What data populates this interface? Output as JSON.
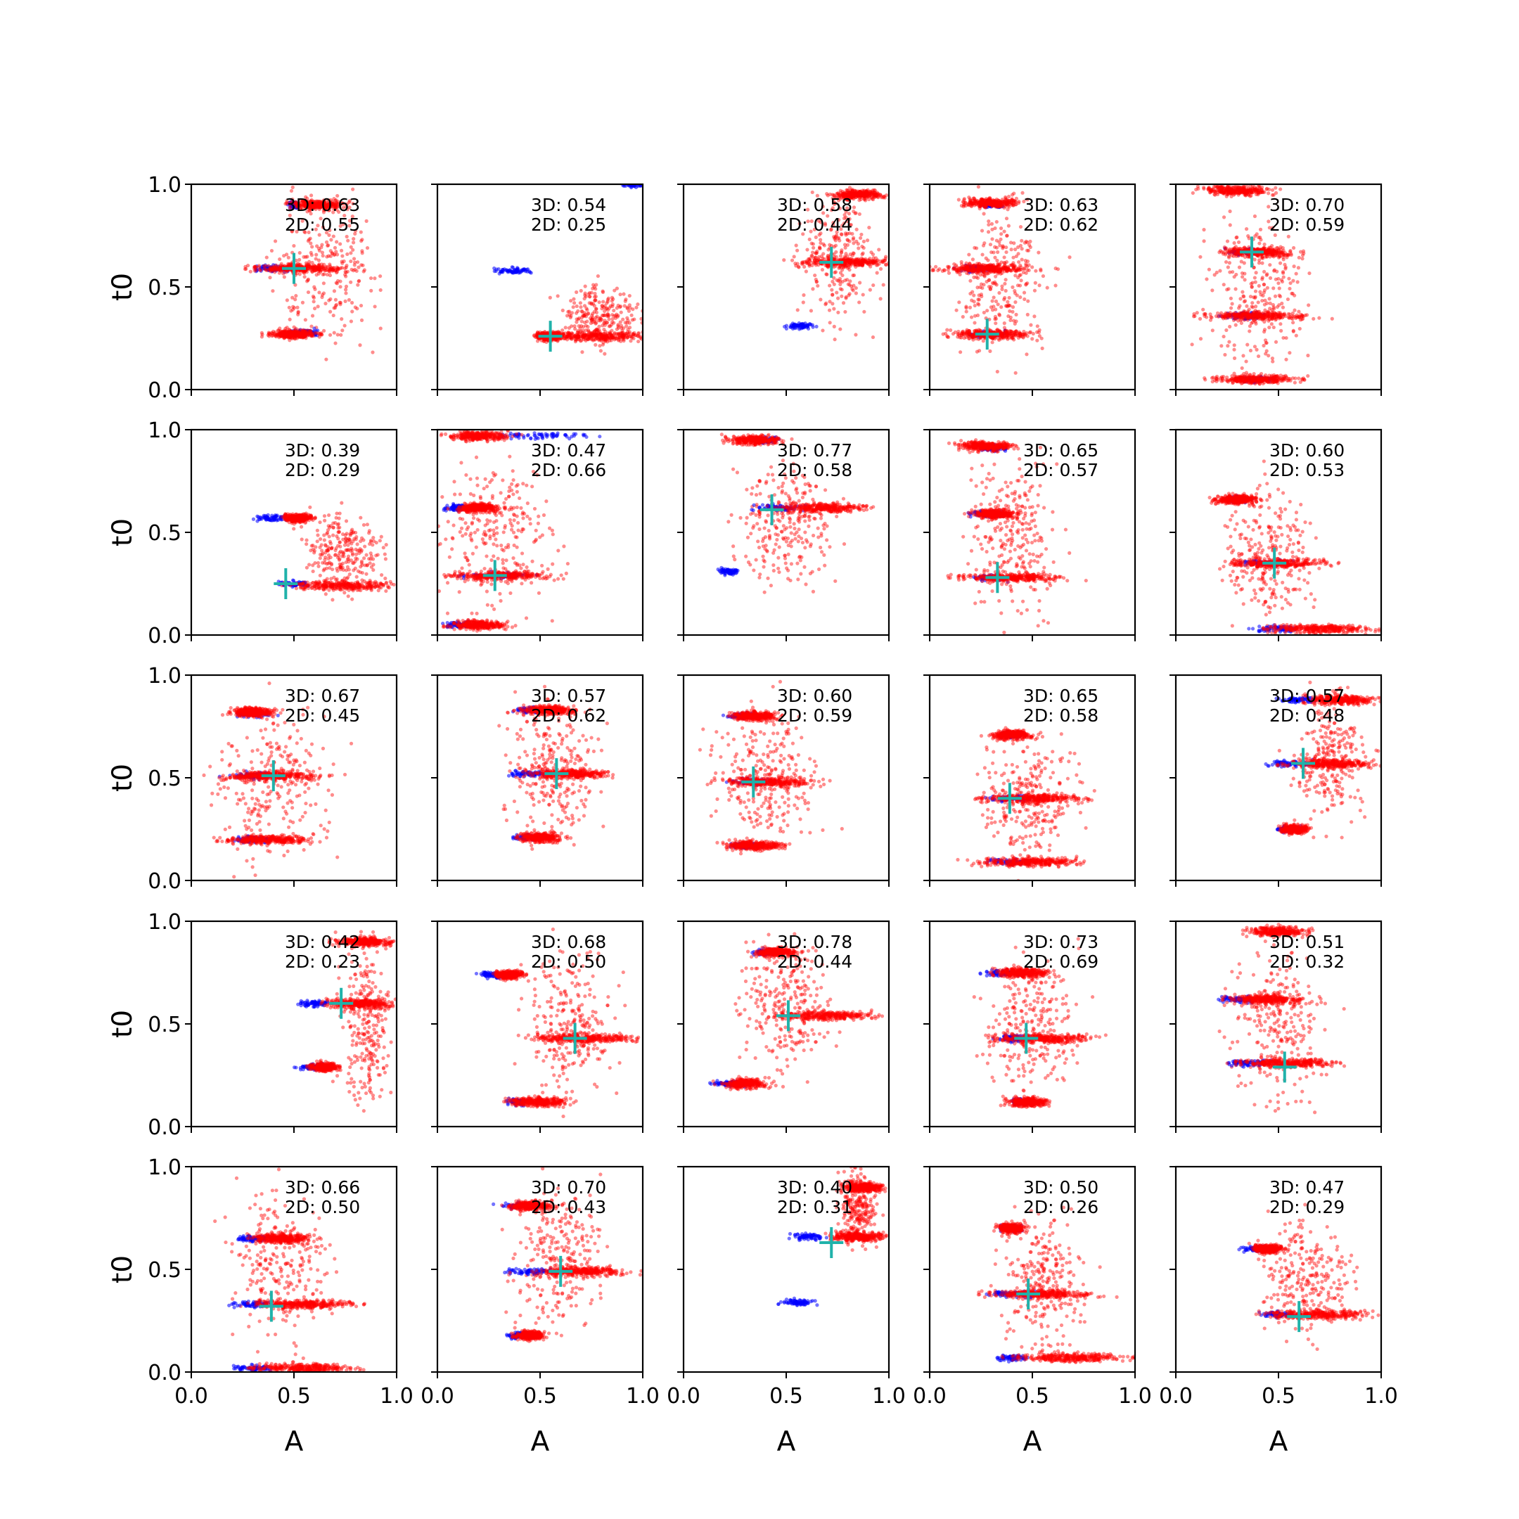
{
  "figure": {
    "xlabel": "A",
    "ylabel": "t0",
    "xticks": [
      "0.0",
      "0.5",
      "1.0"
    ],
    "yticks": [
      "0.0",
      "0.5",
      "1.0"
    ]
  },
  "chart_data": {
    "type": "scatter",
    "layout": "5x5 grid of scatter subplots",
    "xlim": [
      0,
      1
    ],
    "ylim": [
      0,
      1
    ],
    "grid": false,
    "series_colors": {
      "samples_3d": "#0000ff",
      "samples_2d": "#ff0000",
      "marker": "#20b2aa"
    },
    "panels": [
      {
        "label3d": "3D: 0.63",
        "label2d": "2D: 0.55",
        "marker": [
          0.5,
          0.59
        ],
        "blue": [
          [
            0.39,
            0.59,
            0.15
          ],
          [
            0.55,
            0.28,
            0.13
          ],
          [
            0.5,
            0.9,
            0.05
          ]
        ],
        "red": [
          [
            0.53,
            0.59,
            0.3
          ],
          [
            0.5,
            0.27,
            0.18
          ],
          [
            0.62,
            0.9,
            0.2
          ]
        ],
        "noise": [
          0.65,
          0.6,
          0.45,
          0.6
        ]
      },
      {
        "label3d": "3D: 0.54",
        "label2d": "2D: 0.25",
        "marker": [
          0.55,
          0.26
        ],
        "blue": [
          [
            0.37,
            0.58,
            0.15
          ],
          [
            0.95,
            1.0,
            0.1
          ]
        ],
        "red": [
          [
            0.78,
            0.26,
            0.35
          ],
          [
            0.55,
            0.26,
            0.1
          ]
        ],
        "noise": [
          0.8,
          0.35,
          0.3,
          0.25
        ]
      },
      {
        "label3d": "3D: 0.58",
        "label2d": "2D: 0.44",
        "marker": [
          0.72,
          0.62
        ],
        "blue": [
          [
            0.57,
            0.31,
            0.12
          ]
        ],
        "red": [
          [
            0.8,
            0.62,
            0.3
          ],
          [
            0.85,
            0.95,
            0.2
          ]
        ],
        "noise": [
          0.75,
          0.65,
          0.3,
          0.55
        ]
      },
      {
        "label3d": "3D: 0.63",
        "label2d": "2D: 0.62",
        "marker": [
          0.28,
          0.27
        ],
        "blue": [
          [
            0.23,
            0.59,
            0.15
          ],
          [
            0.28,
            0.27,
            0.15
          ],
          [
            0.3,
            0.9,
            0.1
          ]
        ],
        "red": [
          [
            0.27,
            0.59,
            0.3
          ],
          [
            0.3,
            0.27,
            0.3
          ],
          [
            0.3,
            0.91,
            0.2
          ]
        ],
        "noise": [
          0.35,
          0.55,
          0.35,
          0.6
        ]
      },
      {
        "label3d": "3D: 0.70",
        "label2d": "2D: 0.59",
        "marker": [
          0.37,
          0.67
        ],
        "blue": [
          [
            0.34,
            0.67,
            0.15
          ],
          [
            0.34,
            0.36,
            0.2
          ],
          [
            0.4,
            0.05,
            0.15
          ]
        ],
        "red": [
          [
            0.4,
            0.67,
            0.25
          ],
          [
            0.4,
            0.36,
            0.35
          ],
          [
            0.4,
            0.05,
            0.3
          ],
          [
            0.3,
            0.97,
            0.25
          ]
        ],
        "noise": [
          0.4,
          0.5,
          0.4,
          0.6
        ]
      },
      {
        "label3d": "3D: 0.39",
        "label2d": "2D: 0.29",
        "marker": [
          0.46,
          0.25
        ],
        "blue": [
          [
            0.39,
            0.57,
            0.15
          ],
          [
            0.5,
            0.25,
            0.12
          ]
        ],
        "red": [
          [
            0.75,
            0.24,
            0.35
          ],
          [
            0.52,
            0.57,
            0.1
          ]
        ],
        "noise": [
          0.75,
          0.4,
          0.3,
          0.3
        ]
      },
      {
        "label3d": "3D: 0.47",
        "label2d": "2D: 0.66",
        "marker": [
          0.28,
          0.29
        ],
        "blue": [
          [
            0.3,
            0.29,
            0.3
          ],
          [
            0.5,
            0.97,
            0.45
          ],
          [
            0.1,
            0.62,
            0.1
          ],
          [
            0.1,
            0.05,
            0.1
          ]
        ],
        "red": [
          [
            0.3,
            0.29,
            0.35
          ],
          [
            0.2,
            0.62,
            0.15
          ],
          [
            0.2,
            0.97,
            0.2
          ],
          [
            0.2,
            0.05,
            0.2
          ]
        ],
        "noise": [
          0.3,
          0.5,
          0.45,
          0.6
        ]
      },
      {
        "label3d": "3D: 0.77",
        "label2d": "2D: 0.58",
        "marker": [
          0.43,
          0.61
        ],
        "blue": [
          [
            0.45,
            0.62,
            0.2
          ],
          [
            0.22,
            0.31,
            0.08
          ],
          [
            0.4,
            0.95,
            0.1
          ]
        ],
        "red": [
          [
            0.68,
            0.62,
            0.35
          ],
          [
            0.35,
            0.95,
            0.2
          ]
        ],
        "noise": [
          0.5,
          0.55,
          0.4,
          0.45
        ]
      },
      {
        "label3d": "3D: 0.65",
        "label2d": "2D: 0.57",
        "marker": [
          0.33,
          0.28
        ],
        "blue": [
          [
            0.28,
            0.59,
            0.15
          ],
          [
            0.3,
            0.28,
            0.2
          ],
          [
            0.32,
            0.91,
            0.1
          ]
        ],
        "red": [
          [
            0.4,
            0.28,
            0.35
          ],
          [
            0.32,
            0.59,
            0.15
          ],
          [
            0.28,
            0.92,
            0.2
          ]
        ],
        "noise": [
          0.4,
          0.5,
          0.35,
          0.6
        ]
      },
      {
        "label3d": "3D: 0.60",
        "label2d": "2D: 0.53",
        "marker": [
          0.48,
          0.35
        ],
        "blue": [
          [
            0.45,
            0.35,
            0.2
          ],
          [
            0.3,
            0.66,
            0.1
          ],
          [
            0.5,
            0.03,
            0.2
          ]
        ],
        "red": [
          [
            0.5,
            0.35,
            0.35
          ],
          [
            0.7,
            0.03,
            0.35
          ],
          [
            0.3,
            0.66,
            0.15
          ]
        ],
        "noise": [
          0.45,
          0.4,
          0.35,
          0.55
        ]
      },
      {
        "label3d": "3D: 0.67",
        "label2d": "2D: 0.45",
        "marker": [
          0.4,
          0.51
        ],
        "blue": [
          [
            0.3,
            0.51,
            0.2
          ],
          [
            0.3,
            0.2,
            0.2
          ],
          [
            0.3,
            0.81,
            0.15
          ]
        ],
        "red": [
          [
            0.38,
            0.51,
            0.35
          ],
          [
            0.38,
            0.2,
            0.3
          ],
          [
            0.3,
            0.82,
            0.15
          ]
        ],
        "noise": [
          0.4,
          0.5,
          0.45,
          0.6
        ]
      },
      {
        "label3d": "3D: 0.57",
        "label2d": "2D: 0.62",
        "marker": [
          0.58,
          0.52
        ],
        "blue": [
          [
            0.45,
            0.52,
            0.2
          ],
          [
            0.45,
            0.21,
            0.15
          ],
          [
            0.45,
            0.83,
            0.15
          ]
        ],
        "red": [
          [
            0.65,
            0.52,
            0.3
          ],
          [
            0.5,
            0.21,
            0.15
          ],
          [
            0.55,
            0.83,
            0.2
          ]
        ],
        "noise": [
          0.55,
          0.55,
          0.35,
          0.5
        ]
      },
      {
        "label3d": "3D: 0.60",
        "label2d": "2D: 0.59",
        "marker": [
          0.34,
          0.48
        ],
        "blue": [
          [
            0.35,
            0.48,
            0.2
          ],
          [
            0.3,
            0.17,
            0.15
          ],
          [
            0.3,
            0.8,
            0.15
          ]
        ],
        "red": [
          [
            0.42,
            0.48,
            0.35
          ],
          [
            0.35,
            0.17,
            0.2
          ],
          [
            0.35,
            0.8,
            0.15
          ]
        ],
        "noise": [
          0.4,
          0.5,
          0.4,
          0.6
        ]
      },
      {
        "label3d": "3D: 0.65",
        "label2d": "2D: 0.58",
        "marker": [
          0.39,
          0.4
        ],
        "blue": [
          [
            0.4,
            0.4,
            0.2
          ],
          [
            0.4,
            0.09,
            0.2
          ],
          [
            0.4,
            0.71,
            0.1
          ]
        ],
        "red": [
          [
            0.5,
            0.4,
            0.35
          ],
          [
            0.5,
            0.09,
            0.35
          ],
          [
            0.4,
            0.71,
            0.15
          ]
        ],
        "noise": [
          0.5,
          0.4,
          0.4,
          0.5
        ]
      },
      {
        "label3d": "3D: 0.57",
        "label2d": "2D: 0.48",
        "marker": [
          0.62,
          0.57
        ],
        "blue": [
          [
            0.55,
            0.57,
            0.2
          ],
          [
            0.55,
            0.25,
            0.1
          ],
          [
            0.6,
            0.88,
            0.15
          ]
        ],
        "red": [
          [
            0.75,
            0.57,
            0.3
          ],
          [
            0.8,
            0.88,
            0.25
          ],
          [
            0.58,
            0.25,
            0.1
          ]
        ],
        "noise": [
          0.75,
          0.6,
          0.3,
          0.5
        ]
      },
      {
        "label3d": "3D: 0.42",
        "label2d": "2D: 0.23",
        "marker": [
          0.73,
          0.6
        ],
        "blue": [
          [
            0.6,
            0.6,
            0.15
          ],
          [
            0.6,
            0.29,
            0.15
          ]
        ],
        "red": [
          [
            0.82,
            0.6,
            0.25
          ],
          [
            0.85,
            0.9,
            0.2
          ],
          [
            0.65,
            0.29,
            0.1
          ]
        ],
        "noise": [
          0.85,
          0.5,
          0.2,
          0.6
        ]
      },
      {
        "label3d": "3D: 0.68",
        "label2d": "2D: 0.50",
        "marker": [
          0.67,
          0.43
        ],
        "blue": [
          [
            0.27,
            0.74,
            0.15
          ],
          [
            0.4,
            0.12,
            0.1
          ]
        ],
        "red": [
          [
            0.72,
            0.43,
            0.35
          ],
          [
            0.5,
            0.12,
            0.2
          ],
          [
            0.35,
            0.74,
            0.1
          ]
        ],
        "noise": [
          0.65,
          0.5,
          0.35,
          0.55
        ]
      },
      {
        "label3d": "3D: 0.78",
        "label2d": "2D: 0.44",
        "marker": [
          0.51,
          0.54
        ],
        "blue": [
          [
            0.22,
            0.21,
            0.15
          ],
          [
            0.4,
            0.85,
            0.1
          ]
        ],
        "red": [
          [
            0.7,
            0.54,
            0.35
          ],
          [
            0.3,
            0.21,
            0.15
          ],
          [
            0.45,
            0.85,
            0.15
          ]
        ],
        "noise": [
          0.5,
          0.6,
          0.35,
          0.55
        ]
      },
      {
        "label3d": "3D: 0.73",
        "label2d": "2D: 0.69",
        "marker": [
          0.47,
          0.43
        ],
        "blue": [
          [
            0.35,
            0.75,
            0.15
          ],
          [
            0.4,
            0.43,
            0.15
          ],
          [
            0.45,
            0.12,
            0.1
          ]
        ],
        "red": [
          [
            0.45,
            0.75,
            0.2
          ],
          [
            0.55,
            0.43,
            0.35
          ],
          [
            0.48,
            0.12,
            0.15
          ]
        ],
        "noise": [
          0.5,
          0.5,
          0.35,
          0.55
        ]
      },
      {
        "label3d": "3D: 0.51",
        "label2d": "2D: 0.32",
        "marker": [
          0.53,
          0.29
        ],
        "blue": [
          [
            0.3,
            0.62,
            0.15
          ],
          [
            0.35,
            0.31,
            0.2
          ]
        ],
        "red": [
          [
            0.45,
            0.62,
            0.25
          ],
          [
            0.55,
            0.31,
            0.35
          ],
          [
            0.5,
            0.95,
            0.2
          ]
        ],
        "noise": [
          0.5,
          0.5,
          0.4,
          0.6
        ]
      },
      {
        "label3d": "3D: 0.66",
        "label2d": "2D: 0.50",
        "marker": [
          0.39,
          0.32
        ],
        "blue": [
          [
            0.3,
            0.65,
            0.15
          ],
          [
            0.3,
            0.33,
            0.2
          ],
          [
            0.3,
            0.02,
            0.15
          ]
        ],
        "red": [
          [
            0.45,
            0.65,
            0.2
          ],
          [
            0.55,
            0.33,
            0.35
          ],
          [
            0.55,
            0.02,
            0.35
          ]
        ],
        "noise": [
          0.45,
          0.5,
          0.4,
          0.6
        ]
      },
      {
        "label3d": "3D: 0.70",
        "label2d": "2D: 0.43",
        "marker": [
          0.6,
          0.49
        ],
        "blue": [
          [
            0.45,
            0.49,
            0.2
          ],
          [
            0.4,
            0.81,
            0.15
          ],
          [
            0.4,
            0.18,
            0.1
          ]
        ],
        "red": [
          [
            0.7,
            0.49,
            0.35
          ],
          [
            0.45,
            0.81,
            0.15
          ],
          [
            0.45,
            0.18,
            0.1
          ]
        ],
        "noise": [
          0.6,
          0.55,
          0.35,
          0.55
        ]
      },
      {
        "label3d": "3D: 0.40",
        "label2d": "2D: 0.31",
        "marker": [
          0.72,
          0.63
        ],
        "blue": [
          [
            0.6,
            0.66,
            0.15
          ],
          [
            0.55,
            0.34,
            0.15
          ]
        ],
        "red": [
          [
            0.85,
            0.66,
            0.2
          ],
          [
            0.88,
            0.9,
            0.15
          ]
        ],
        "noise": [
          0.85,
          0.8,
          0.15,
          0.3
        ]
      },
      {
        "label3d": "3D: 0.50",
        "label2d": "2D: 0.26",
        "marker": [
          0.48,
          0.38
        ],
        "blue": [
          [
            0.4,
            0.38,
            0.2
          ],
          [
            0.4,
            0.07,
            0.15
          ],
          [
            0.4,
            0.7,
            0.1
          ]
        ],
        "red": [
          [
            0.55,
            0.38,
            0.35
          ],
          [
            0.7,
            0.07,
            0.4
          ],
          [
            0.4,
            0.7,
            0.1
          ]
        ],
        "noise": [
          0.55,
          0.45,
          0.35,
          0.5
        ]
      },
      {
        "label3d": "3D: 0.47",
        "label2d": "2D: 0.29",
        "marker": [
          0.6,
          0.27
        ],
        "blue": [
          [
            0.4,
            0.6,
            0.15
          ],
          [
            0.5,
            0.28,
            0.15
          ]
        ],
        "red": [
          [
            0.7,
            0.28,
            0.35
          ],
          [
            0.45,
            0.6,
            0.1
          ]
        ],
        "noise": [
          0.65,
          0.45,
          0.35,
          0.45
        ]
      }
    ]
  }
}
